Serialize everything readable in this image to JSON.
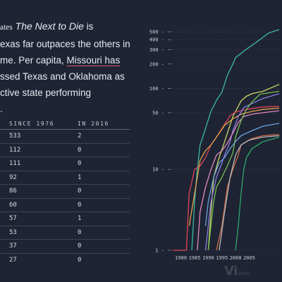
{
  "intro": {
    "line1_prefix": "ates",
    "line1_title": "The Next to Die",
    "line1_suffix": " is",
    "line2": "exas far outpaces the others in",
    "line3_prefix": "me. Per capita, ",
    "line3_link": "Missouri has",
    "line4": "ssed Texas and Oklahoma as",
    "line5": "ctive state performing",
    "line6": "."
  },
  "table": {
    "headers": [
      "SINCE 1976",
      "IN 2016"
    ],
    "rows": [
      [
        "533",
        "2"
      ],
      [
        "112",
        "0"
      ],
      [
        "111",
        "0"
      ],
      [
        "92",
        "1"
      ],
      [
        "86",
        "0"
      ],
      [
        "60",
        "0"
      ],
      [
        "57",
        "1"
      ],
      [
        "53",
        "0"
      ],
      [
        "37",
        "0"
      ],
      [
        "27",
        "0"
      ]
    ]
  },
  "watermark": {
    "text": "Vi",
    "sub": "zone"
  },
  "chart_data": {
    "type": "line",
    "yscale": "log",
    "ylim": [
      1,
      600
    ],
    "xlim": [
      1977,
      2017
    ],
    "x_ticks": [
      "1980",
      "1985",
      "1990",
      "1995",
      "2000",
      "2005"
    ],
    "y_ticks": [
      "1",
      "10",
      "50",
      "100",
      "200",
      "300",
      "400",
      "500"
    ],
    "grid": "horizontal",
    "series": [
      {
        "color": "#3fb8a2",
        "points": [
          [
            1984,
            1
          ],
          [
            1985,
            4
          ],
          [
            1986,
            10
          ],
          [
            1987,
            20
          ],
          [
            1988,
            25
          ],
          [
            1989,
            32
          ],
          [
            1991,
            52
          ],
          [
            1993,
            71
          ],
          [
            1995,
            90
          ],
          [
            1997,
            145
          ],
          [
            1999,
            200
          ],
          [
            2000,
            240
          ],
          [
            2002,
            270
          ],
          [
            2004,
            305
          ],
          [
            2006,
            340
          ],
          [
            2008,
            380
          ],
          [
            2012,
            480
          ],
          [
            2016,
            533
          ]
        ]
      },
      {
        "color": "#cfd76a",
        "points": [
          [
            1990,
            1
          ],
          [
            1991,
            3
          ],
          [
            1992,
            8
          ],
          [
            1994,
            14
          ],
          [
            1996,
            22
          ],
          [
            1997,
            28
          ],
          [
            1999,
            45
          ],
          [
            2001,
            60
          ],
          [
            2002,
            70
          ],
          [
            2004,
            80
          ],
          [
            2006,
            86
          ],
          [
            2010,
            92
          ],
          [
            2016,
            112
          ]
        ]
      },
      {
        "color": "#e0455f",
        "points": [
          [
            1977,
            1
          ],
          [
            1979,
            1
          ],
          [
            1982,
            1
          ],
          [
            1983,
            5
          ],
          [
            1985,
            10
          ],
          [
            1987,
            11
          ],
          [
            1989,
            14
          ],
          [
            1991,
            20
          ],
          [
            1993,
            25
          ],
          [
            1995,
            32
          ],
          [
            1998,
            46
          ],
          [
            2000,
            51
          ],
          [
            2004,
            55
          ],
          [
            2010,
            59
          ],
          [
            2016,
            60
          ]
        ]
      },
      {
        "color": "#e6a24a",
        "points": [
          [
            1983,
            2
          ],
          [
            1985,
            5
          ],
          [
            1986,
            8
          ],
          [
            1987,
            13
          ],
          [
            1989,
            17
          ],
          [
            1991,
            20
          ],
          [
            1993,
            25
          ],
          [
            1996,
            35
          ],
          [
            1999,
            42
          ],
          [
            2002,
            48
          ],
          [
            2006,
            52
          ],
          [
            2010,
            55
          ],
          [
            2016,
            57
          ]
        ]
      },
      {
        "color": "#8a7fe0",
        "points": [
          [
            1989,
            1
          ],
          [
            1991,
            4
          ],
          [
            1993,
            8
          ],
          [
            1995,
            12
          ],
          [
            1996,
            15
          ],
          [
            1998,
            22
          ],
          [
            1999,
            30
          ],
          [
            2001,
            45
          ],
          [
            2003,
            58
          ],
          [
            2006,
            65
          ],
          [
            2010,
            75
          ],
          [
            2016,
            86
          ]
        ]
      },
      {
        "color": "#e489c4",
        "points": [
          [
            1986,
            1
          ],
          [
            1987,
            3
          ],
          [
            1989,
            6
          ],
          [
            1991,
            10
          ],
          [
            1993,
            15
          ],
          [
            1995,
            17
          ],
          [
            1997,
            21
          ],
          [
            1999,
            28
          ],
          [
            2001,
            38
          ],
          [
            2003,
            45
          ],
          [
            2006,
            48
          ],
          [
            2010,
            50
          ],
          [
            2016,
            53
          ]
        ]
      },
      {
        "color": "#76bf55",
        "points": [
          [
            1990,
            1
          ],
          [
            1992,
            4
          ],
          [
            1993,
            6
          ],
          [
            1995,
            8
          ],
          [
            1997,
            11
          ],
          [
            1999,
            16
          ],
          [
            2000,
            25
          ],
          [
            2002,
            40
          ],
          [
            2004,
            55
          ],
          [
            2006,
            68
          ],
          [
            2009,
            85
          ],
          [
            2016,
            92
          ]
        ]
      },
      {
        "color": "#6ea3e0",
        "points": [
          [
            1989,
            2
          ],
          [
            1990,
            4
          ],
          [
            1992,
            8
          ],
          [
            1994,
            12
          ],
          [
            1996,
            14
          ],
          [
            1998,
            18
          ],
          [
            2000,
            22
          ],
          [
            2002,
            26
          ],
          [
            2006,
            30
          ],
          [
            2010,
            34
          ],
          [
            2016,
            37
          ]
        ]
      },
      {
        "color": "#d06a4a",
        "points": [
          [
            1993,
            1
          ],
          [
            1995,
            2
          ],
          [
            1997,
            6
          ],
          [
            1999,
            10
          ],
          [
            2001,
            15
          ],
          [
            2002,
            20
          ],
          [
            2004,
            22
          ],
          [
            2006,
            24
          ],
          [
            2010,
            26
          ],
          [
            2016,
            27
          ]
        ]
      },
      {
        "color": "#b8b8b8",
        "points": [
          [
            1994,
            1
          ],
          [
            1996,
            3
          ],
          [
            1998,
            8
          ],
          [
            2000,
            15
          ],
          [
            2002,
            20
          ],
          [
            2005,
            23
          ],
          [
            2010,
            25
          ],
          [
            2016,
            26
          ]
        ]
      },
      {
        "color": "#2ca86a",
        "points": [
          [
            2000,
            1
          ],
          [
            2001,
            2
          ],
          [
            2002,
            5
          ],
          [
            2003,
            10
          ],
          [
            2004,
            14
          ],
          [
            2006,
            18
          ],
          [
            2010,
            22
          ],
          [
            2016,
            25
          ]
        ]
      }
    ]
  }
}
